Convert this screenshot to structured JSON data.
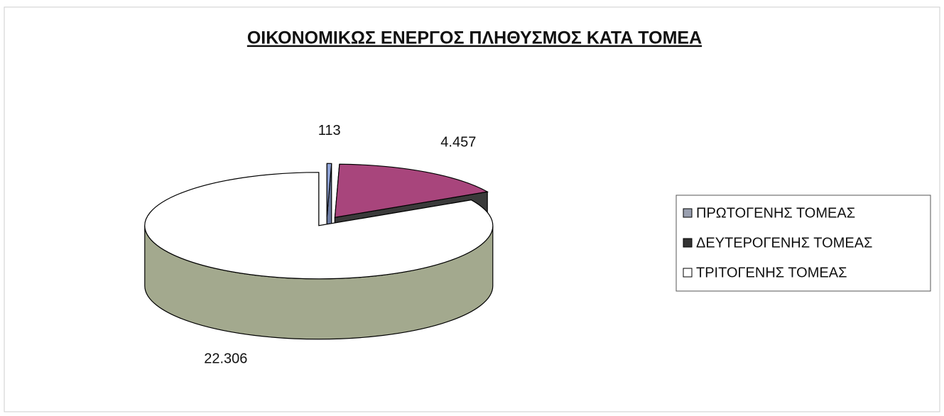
{
  "chart_data": {
    "type": "pie",
    "title": "ΟΙΚΟΝΟΜΙΚΩΣ ΕΝΕΡΓΟΣ ΠΛΗΘΥΣΜΟΣ ΚΑΤΑ ΤΟΜΕΑ",
    "categories": [
      "ΠΡΩΤΟΓΕΝΗΣ ΤΟΜΕΑΣ",
      "ΔΕΥΤΕΡΟΓΕΝΗΣ ΤΟΜΕΑΣ",
      "ΤΡΙΤΟΓΕΝΗΣ ΤΟΜΕΑΣ"
    ],
    "values": [
      113,
      4457,
      22306
    ],
    "value_labels": [
      "113",
      "4.457",
      "22.306"
    ],
    "colors": [
      "#8fa3d6",
      "#a8457c",
      "#ffffff"
    ],
    "legend": "right"
  }
}
